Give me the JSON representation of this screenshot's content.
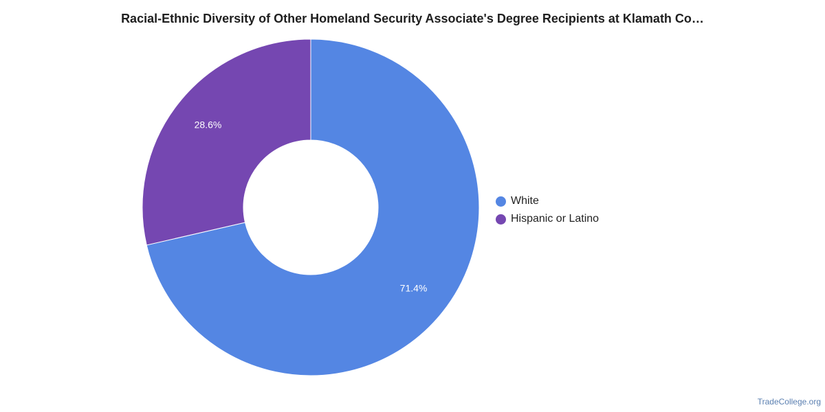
{
  "chart_data": {
    "type": "pie",
    "title": "Racial-Ethnic Diversity of Other Homeland Security Associate's Degree Recipients at Klamath Co…",
    "categories": [
      "White",
      "Hispanic or Latino"
    ],
    "values": [
      71.4,
      28.6
    ],
    "data_labels": [
      "71.4%",
      "28.6%"
    ],
    "colors": [
      "#5486e3",
      "#7547b1"
    ],
    "donut": true,
    "legend_position": "right"
  },
  "legend": {
    "items": [
      {
        "label": "White",
        "color": "#5486e3"
      },
      {
        "label": "Hispanic or Latino",
        "color": "#7547b1"
      }
    ]
  },
  "source": {
    "label": "TradeCollege.org"
  }
}
